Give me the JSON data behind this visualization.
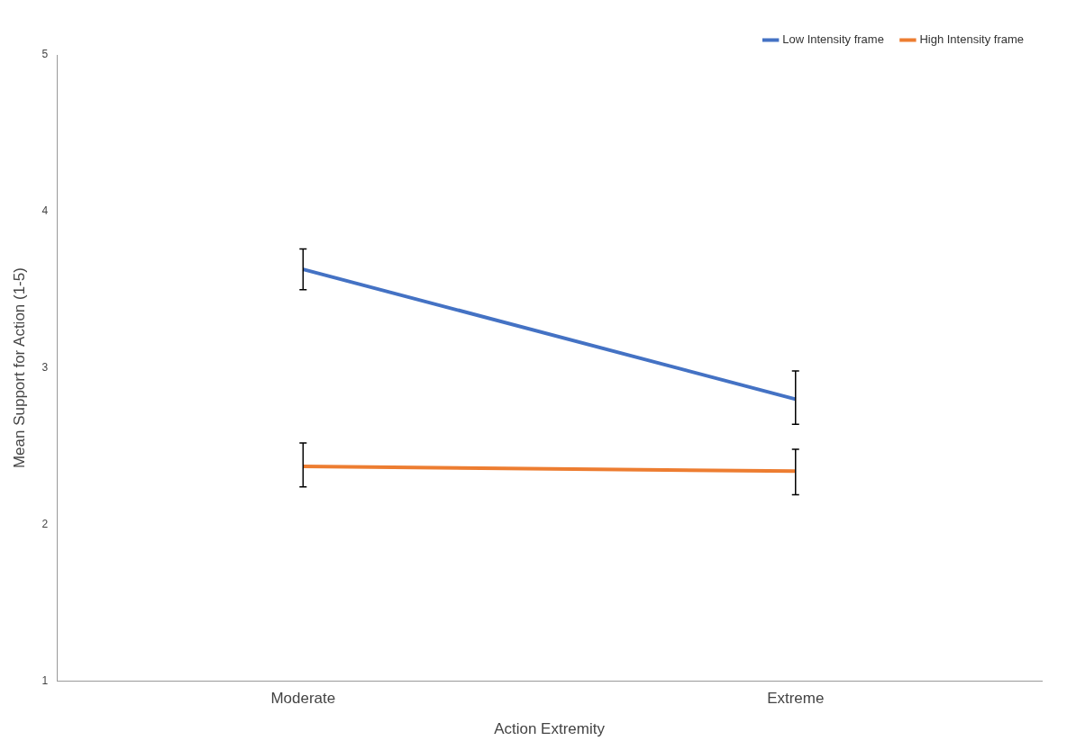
{
  "chart_data": {
    "type": "line",
    "xlabel": "Action Extremity",
    "ylabel": "Mean Support for Action (1-5)",
    "categories": [
      "Moderate",
      "Extreme"
    ],
    "series": [
      {
        "name": "Low Intensity frame",
        "color": "#4472c4",
        "values": [
          3.63,
          2.8
        ],
        "errors": [
          [
            3.5,
            3.76
          ],
          [
            2.64,
            2.98
          ]
        ]
      },
      {
        "name": "High Intensity frame",
        "color": "#ed7d31",
        "values": [
          2.37,
          2.34
        ],
        "errors": [
          [
            2.24,
            2.52
          ],
          [
            2.19,
            2.48
          ]
        ]
      }
    ],
    "ylim": [
      1,
      5
    ],
    "yticks": [
      1,
      2,
      3,
      4,
      5
    ],
    "grid": false,
    "legend": "top right",
    "marker": "none",
    "line_style": "solid"
  }
}
